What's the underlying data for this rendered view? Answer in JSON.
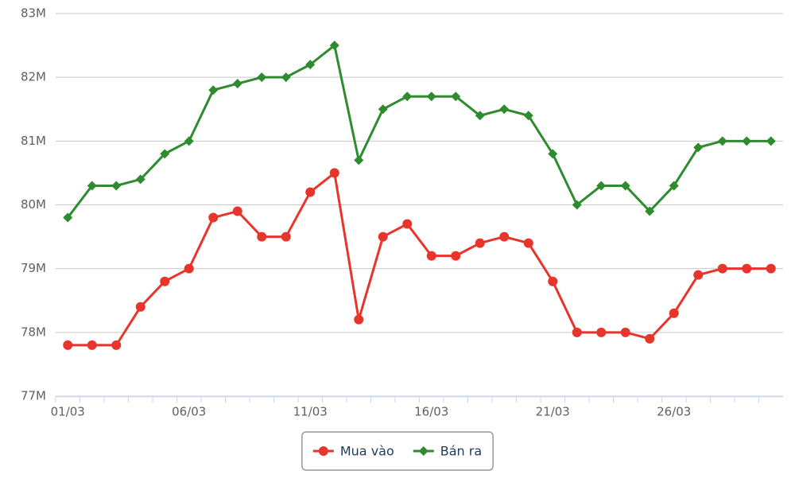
{
  "chart_data": {
    "type": "line",
    "categories": [
      "01/03",
      null,
      null,
      null,
      null,
      "06/03",
      null,
      null,
      null,
      null,
      "11/03",
      null,
      null,
      null,
      null,
      "16/03",
      null,
      null,
      null,
      null,
      "21/03",
      null,
      null,
      null,
      null,
      "26/03",
      null,
      null,
      null,
      null
    ],
    "series": [
      {
        "name": "Mua vào",
        "color": "#e8352b",
        "marker": "circle",
        "values": [
          77.8,
          77.8,
          77.8,
          78.4,
          78.8,
          79.0,
          79.8,
          79.9,
          79.5,
          79.5,
          80.2,
          80.5,
          78.2,
          79.5,
          79.7,
          79.2,
          79.2,
          79.4,
          79.5,
          79.4,
          78.8,
          78.0,
          78.0,
          78.0,
          77.9,
          78.3,
          78.9,
          79.0,
          79.0,
          79.0
        ]
      },
      {
        "name": "Bán ra",
        "color": "#2e8b2e",
        "marker": "diamond",
        "values": [
          79.8,
          80.3,
          80.3,
          80.4,
          80.8,
          81.0,
          81.8,
          81.9,
          82.0,
          82.0,
          82.2,
          82.5,
          80.7,
          81.5,
          81.7,
          81.7,
          81.7,
          81.4,
          81.5,
          81.4,
          80.8,
          80.0,
          80.3,
          80.3,
          79.9,
          80.3,
          80.9,
          81.0,
          81.0,
          81.0
        ]
      }
    ],
    "ylim": [
      77,
      83
    ],
    "yticks": [
      {
        "value": 77,
        "label": "77M"
      },
      {
        "value": 78,
        "label": "78M"
      },
      {
        "value": 79,
        "label": "79M"
      },
      {
        "value": 80,
        "label": "80M"
      },
      {
        "value": 81,
        "label": "81M"
      },
      {
        "value": 82,
        "label": "82M"
      },
      {
        "value": 83,
        "label": "83M"
      }
    ],
    "grid": true,
    "legend": "bottom"
  }
}
